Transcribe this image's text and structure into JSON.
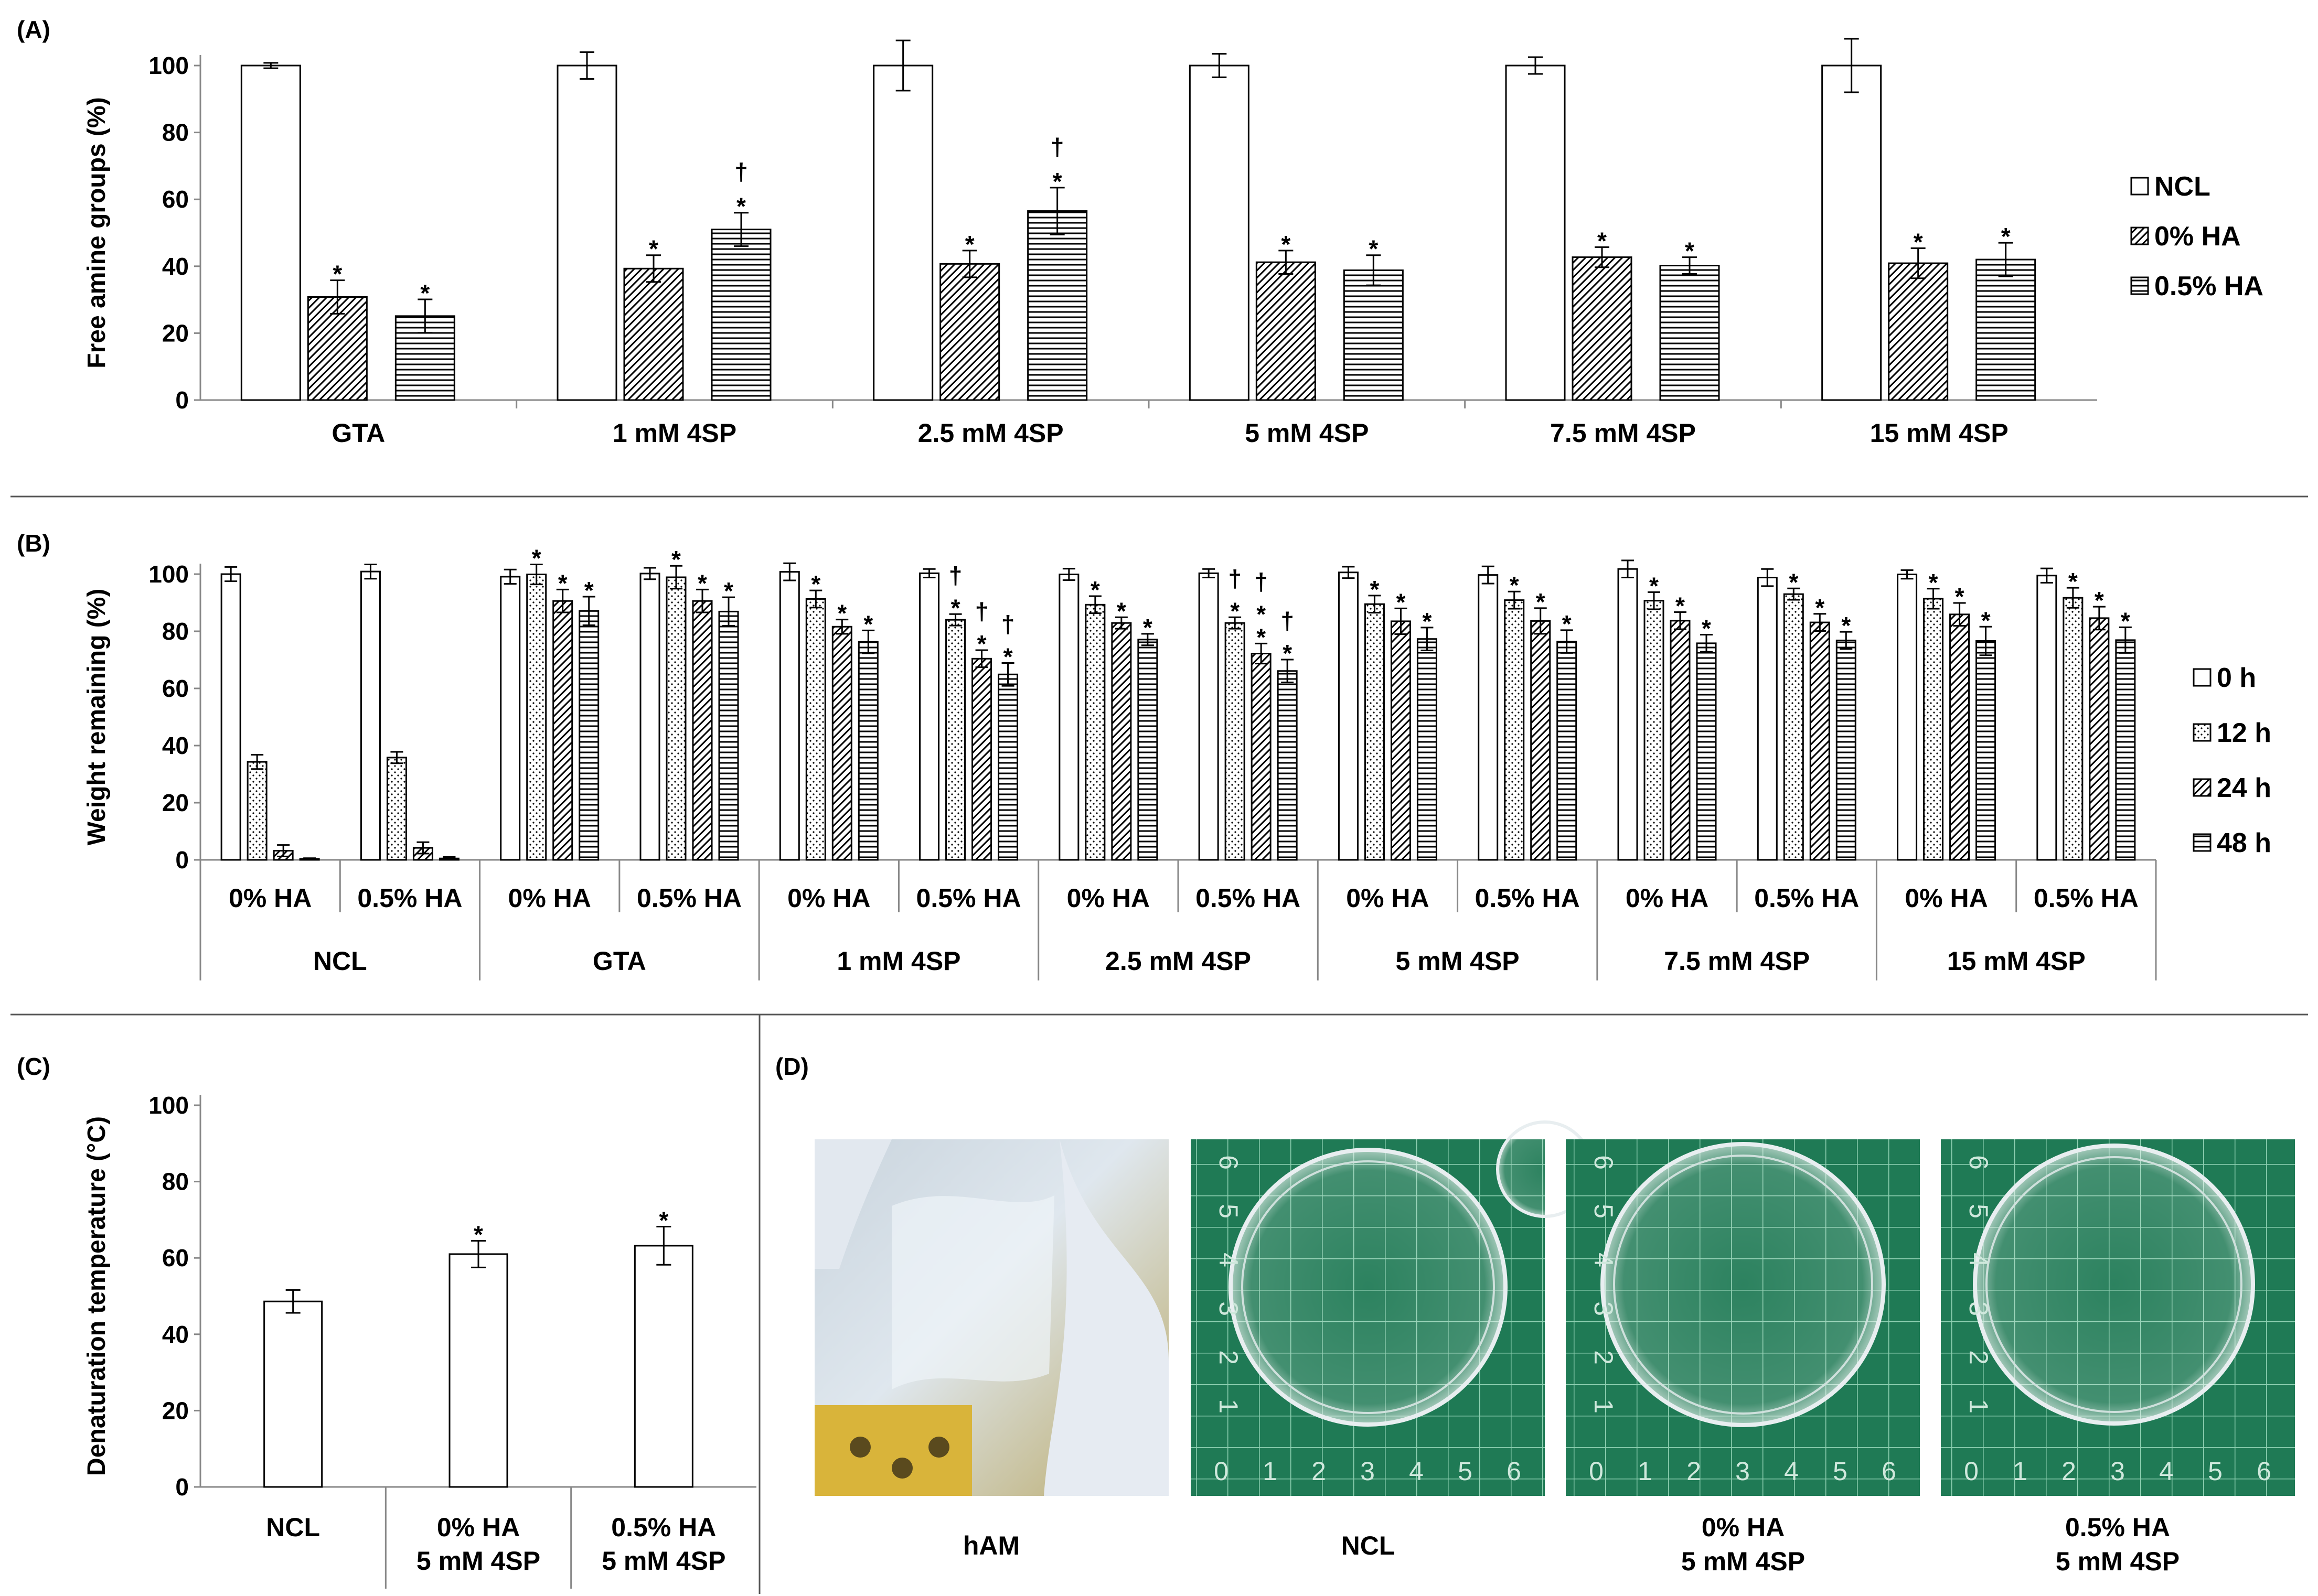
{
  "figure": {
    "separator_color": "#555555"
  },
  "panels": {
    "A": {
      "label": "(A)"
    },
    "B": {
      "label": "(B)"
    },
    "C": {
      "label": "(C)"
    },
    "D": {
      "label": "(D)",
      "photos": [
        {
          "caption_lines": [
            "hAM"
          ],
          "content": "amniotic membrane held in gloved hand"
        },
        {
          "caption_lines": [
            "NCL"
          ],
          "content": "petri dish on green cutting mat"
        },
        {
          "caption_lines": [
            "0% HA",
            "5 mM 4SP"
          ],
          "content": "petri dish on green cutting mat"
        },
        {
          "caption_lines": [
            "0.5% HA",
            "5 mM 4SP"
          ],
          "content": "petri dish on green cutting mat"
        }
      ],
      "mat_numbers": [
        "0",
        "1",
        "2",
        "3",
        "4",
        "5",
        "6"
      ]
    }
  },
  "chart_data": [
    {
      "panel": "A",
      "type": "bar",
      "title": "",
      "xlabel": "",
      "ylabel": "Free amine groups (%)",
      "ylim": [
        0,
        100
      ],
      "yticks": [
        0,
        20,
        40,
        60,
        80,
        100
      ],
      "categories": [
        "GTA",
        "1 mM 4SP",
        "2.5 mM 4SP",
        "5 mM 4SP",
        "7.5 mM 4SP",
        "15 mM 4SP"
      ],
      "legend_position": "right",
      "series": [
        {
          "name": "NCL",
          "pattern": "white",
          "values": [
            100,
            100,
            100,
            100,
            100,
            100
          ],
          "errors": [
            0.8,
            4,
            7.5,
            3.5,
            2.5,
            8
          ]
        },
        {
          "name": "0% HA",
          "pattern": "diag",
          "values": [
            30.8,
            39.3,
            40.7,
            41.2,
            42.7,
            40.9
          ],
          "errors": [
            5,
            4,
            4,
            3.5,
            3,
            4.5
          ]
        },
        {
          "name": "0.5% HA",
          "pattern": "horiz",
          "values": [
            25.1,
            51,
            56.5,
            38.8,
            40.2,
            42
          ],
          "errors": [
            5,
            5,
            7,
            4.5,
            2.5,
            5
          ]
        }
      ],
      "annotations": [
        [
          "",
          "",
          "",
          "",
          "",
          ""
        ],
        [
          "*",
          "*",
          "*",
          "*",
          "*",
          "*"
        ],
        [
          "*",
          "*\n†",
          "*\n†",
          "*",
          "*",
          "*"
        ]
      ]
    },
    {
      "panel": "B",
      "type": "bar",
      "title": "",
      "xlabel": "",
      "ylabel": "Weight remaining (%)",
      "ylim": [
        0,
        100
      ],
      "yticks": [
        0,
        20,
        40,
        60,
        80,
        100
      ],
      "categories": [
        "0% HA",
        "0.5% HA",
        "0% HA",
        "0.5% HA",
        "0% HA",
        "0.5% HA",
        "0% HA",
        "0.5% HA",
        "0% HA",
        "0.5% HA",
        "0% HA",
        "0.5% HA",
        "0% HA",
        "0.5% HA"
      ],
      "groups": [
        "NCL",
        "GTA",
        "1 mM 4SP",
        "2.5 mM 4SP",
        "5 mM 4SP",
        "7.5 mM 4SP",
        "15 mM 4SP"
      ],
      "legend_position": "right",
      "series": [
        {
          "name": "0 h",
          "pattern": "white",
          "values": [
            100,
            100.9,
            99.1,
            100.2,
            100.8,
            100.3,
            99.9,
            100.3,
            100.6,
            99.7,
            101.8,
            98.8,
            99.9,
            99.5
          ],
          "errors": [
            2.5,
            2.5,
            2.5,
            2,
            3,
            1.5,
            2,
            1.5,
            2,
            3,
            3,
            3,
            1.5,
            2.5
          ]
        },
        {
          "name": "12 h",
          "pattern": "dots",
          "values": [
            34.3,
            35.8,
            99.9,
            98.9,
            91.3,
            84,
            89.3,
            82.9,
            89.5,
            90.9,
            90.7,
            93,
            91.4,
            91.7
          ],
          "errors": [
            2.5,
            2,
            3.5,
            4,
            3,
            2,
            3,
            2,
            3,
            3,
            3,
            2,
            3.5,
            3.5
          ]
        },
        {
          "name": "24 h",
          "pattern": "diag",
          "values": [
            3.2,
            4.2,
            90.6,
            90.6,
            81.6,
            70.4,
            82.9,
            72.2,
            83.5,
            83.6,
            83.7,
            83.1,
            85.9,
            84.6
          ],
          "errors": [
            2,
            2,
            4,
            4,
            2.5,
            3,
            2,
            3.5,
            4.5,
            4.5,
            3,
            3,
            4,
            4
          ]
        },
        {
          "name": "48 h",
          "pattern": "horiz",
          "values": [
            0.3,
            0.5,
            87.1,
            86.9,
            76.3,
            64.9,
            77.1,
            66.1,
            77.3,
            76.4,
            75.8,
            76.8,
            76.6,
            76.9
          ],
          "errors": [
            0.3,
            0.5,
            5,
            5,
            4,
            4,
            2,
            4,
            4,
            4,
            3,
            3,
            5,
            4.5
          ]
        }
      ],
      "annotations": [
        [
          "",
          "",
          "",
          "",
          "",
          "",
          "",
          "",
          "",
          "",
          "",
          "",
          "",
          ""
        ],
        [
          "",
          "",
          "*",
          "*",
          "*",
          "*\n†",
          "*",
          "*\n†",
          "*",
          "*",
          "*",
          "*",
          "*",
          "*"
        ],
        [
          "",
          "",
          "*",
          "*",
          "*",
          "*\n†",
          "*",
          "*\n*\n†",
          "*",
          "*",
          "*",
          "*",
          "*",
          "*"
        ],
        [
          "",
          "",
          "*",
          "*",
          "*",
          "*\n†",
          "*",
          "*\n†",
          "*",
          "*",
          "*",
          "*",
          "*",
          "*"
        ]
      ]
    },
    {
      "panel": "C",
      "type": "bar",
      "title": "",
      "xlabel": "",
      "ylabel": "Denaturation temperature (°C)",
      "ylim": [
        0,
        100
      ],
      "yticks": [
        0,
        20,
        40,
        60,
        80,
        100
      ],
      "category_lines": [
        [
          "NCL"
        ],
        [
          "0% HA",
          "5 mM 4SP"
        ],
        [
          "0.5% HA",
          "5 mM 4SP"
        ]
      ],
      "series": [
        {
          "name": "",
          "pattern": "white",
          "values": [
            48.6,
            61,
            63.2
          ],
          "errors": [
            3,
            3.5,
            5
          ]
        }
      ],
      "annotations": [
        [
          "",
          "*",
          "*"
        ]
      ]
    }
  ]
}
